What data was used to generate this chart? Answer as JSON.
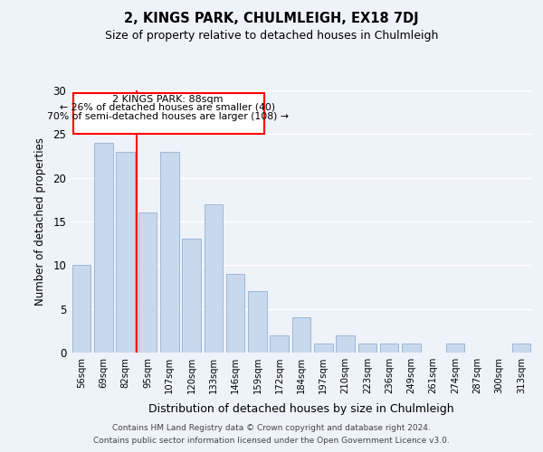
{
  "title": "2, KINGS PARK, CHULMLEIGH, EX18 7DJ",
  "subtitle": "Size of property relative to detached houses in Chulmleigh",
  "xlabel": "Distribution of detached houses by size in Chulmleigh",
  "ylabel": "Number of detached properties",
  "categories": [
    "56sqm",
    "69sqm",
    "82sqm",
    "95sqm",
    "107sqm",
    "120sqm",
    "133sqm",
    "146sqm",
    "159sqm",
    "172sqm",
    "184sqm",
    "197sqm",
    "210sqm",
    "223sqm",
    "236sqm",
    "249sqm",
    "261sqm",
    "274sqm",
    "287sqm",
    "300sqm",
    "313sqm"
  ],
  "values": [
    10,
    24,
    23,
    16,
    23,
    13,
    17,
    9,
    7,
    2,
    4,
    1,
    2,
    1,
    1,
    1,
    0,
    1,
    0,
    0,
    1
  ],
  "bar_color": "#c8d9ed",
  "bar_edge_color": "#9db8d8",
  "background_color": "#eef2f9",
  "ylim": [
    0,
    30
  ],
  "yticks": [
    0,
    5,
    10,
    15,
    20,
    25,
    30
  ],
  "red_line_x": 2.5,
  "annotation_title": "2 KINGS PARK: 88sqm",
  "annotation_line1": "← 26% of detached houses are smaller (40)",
  "annotation_line2": "70% of semi-detached houses are larger (108) →",
  "footnote1": "Contains HM Land Registry data © Crown copyright and database right 2024.",
  "footnote2": "Contains public sector information licensed under the Open Government Licence v3.0."
}
